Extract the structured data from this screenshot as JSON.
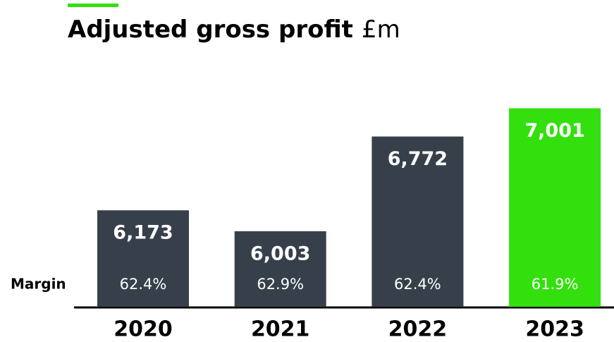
{
  "chart_data": {
    "type": "bar",
    "title": "Adjusted gross profit",
    "unit": "£m",
    "categories": [
      "2020",
      "2021",
      "2022",
      "2023"
    ],
    "values": [
      6173,
      6003,
      6772,
      7001
    ],
    "value_labels": [
      "6,173",
      "6,003",
      "6,772",
      "7,001"
    ],
    "colors": [
      "#37404a",
      "#37404a",
      "#37404a",
      "#33e00d"
    ],
    "margin_label": "Margin",
    "margins": [
      62.4,
      62.9,
      62.4,
      61.9
    ],
    "margin_labels": [
      "62.4%",
      "62.9%",
      "62.4%",
      "61.9%"
    ],
    "ylim": [
      5390,
      7010
    ]
  }
}
